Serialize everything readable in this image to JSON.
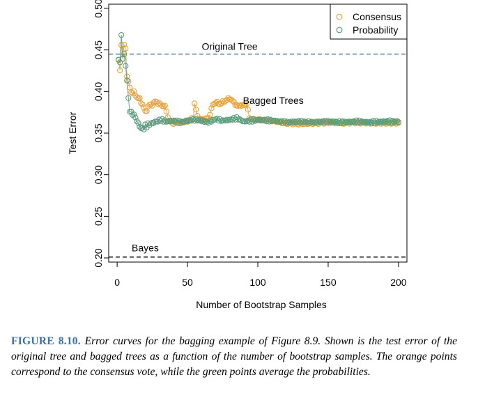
{
  "chart_data": {
    "type": "scatter",
    "title": "",
    "xlabel": "Number of Bootstrap Samples",
    "ylabel": "Test Error",
    "xlim": [
      -6,
      206
    ],
    "ylim": [
      0.195,
      0.505
    ],
    "x_ticks": [
      0,
      50,
      100,
      150,
      200
    ],
    "y_ticks": [
      0.2,
      0.25,
      0.3,
      0.35,
      0.4,
      0.45,
      0.5
    ],
    "x_tick_labels": [
      "0",
      "50",
      "100",
      "150",
      "200"
    ],
    "y_tick_labels": [
      "0.20",
      "0.25",
      "0.30",
      "0.35",
      "0.40",
      "0.45",
      "0.50"
    ],
    "legend_position": "top-right",
    "reference_lines": [
      {
        "name": "Original Tree",
        "y": 0.445,
        "style": "dashed",
        "color": "#4a7fa7"
      },
      {
        "name": "Bayes",
        "y": 0.201,
        "style": "dashed",
        "color": "#000000"
      }
    ],
    "annotations": [
      {
        "text": "Original Tree",
        "x": 80,
        "y": 0.45
      },
      {
        "text": "Bagged Trees",
        "x": 111,
        "y": 0.385
      },
      {
        "text": "Bayes",
        "x": 20,
        "y": 0.208
      }
    ],
    "series": [
      {
        "name": "Consensus",
        "color": "#e8a33d",
        "knots_x": [
          1,
          2,
          3,
          4,
          5,
          6,
          7,
          8,
          9,
          10,
          12,
          14,
          16,
          18,
          20,
          22,
          25,
          28,
          31,
          34,
          37,
          40,
          45,
          50,
          54,
          55,
          57,
          60,
          65,
          68,
          70,
          73,
          76,
          80,
          84,
          86,
          88,
          90,
          92,
          94,
          97,
          100,
          110,
          120,
          130,
          140,
          150,
          160,
          170,
          180,
          190,
          200
        ],
        "knots_y": [
          0.437,
          0.425,
          0.458,
          0.438,
          0.456,
          0.452,
          0.42,
          0.41,
          0.405,
          0.4,
          0.398,
          0.394,
          0.39,
          0.385,
          0.375,
          0.382,
          0.385,
          0.388,
          0.384,
          0.382,
          0.364,
          0.362,
          0.363,
          0.364,
          0.368,
          0.386,
          0.37,
          0.366,
          0.368,
          0.384,
          0.387,
          0.385,
          0.388,
          0.392,
          0.385,
          0.382,
          0.384,
          0.383,
          0.386,
          0.368,
          0.366,
          0.366,
          0.365,
          0.362,
          0.361,
          0.362,
          0.363,
          0.362,
          0.363,
          0.362,
          0.362,
          0.362
        ]
      },
      {
        "name": "Probability",
        "color": "#5a9c7c",
        "knots_x": [
          1,
          2,
          3,
          4,
          5,
          6,
          7,
          8,
          9,
          10,
          12,
          14,
          16,
          18,
          20,
          22,
          25,
          28,
          31,
          35,
          40,
          45,
          50,
          55,
          60,
          65,
          70,
          75,
          80,
          85,
          90,
          100,
          110,
          120,
          130,
          140,
          150,
          160,
          170,
          180,
          190,
          200
        ],
        "knots_y": [
          0.438,
          0.436,
          0.467,
          0.44,
          0.445,
          0.43,
          0.415,
          0.39,
          0.378,
          0.374,
          0.372,
          0.365,
          0.358,
          0.355,
          0.358,
          0.36,
          0.362,
          0.364,
          0.366,
          0.364,
          0.365,
          0.363,
          0.365,
          0.366,
          0.365,
          0.363,
          0.367,
          0.365,
          0.366,
          0.368,
          0.364,
          0.366,
          0.365,
          0.363,
          0.364,
          0.363,
          0.364,
          0.363,
          0.364,
          0.363,
          0.364,
          0.364
        ]
      }
    ],
    "n_points_per_series": 200
  },
  "caption": {
    "label": "FIGURE 8.10.",
    "text": "Error curves for the bagging example of Figure 8.9. Shown is the test error of the original tree and bagged trees as a function of the number of bootstrap samples. The orange points correspond to the consensus vote, while the green points average the probabilities."
  }
}
